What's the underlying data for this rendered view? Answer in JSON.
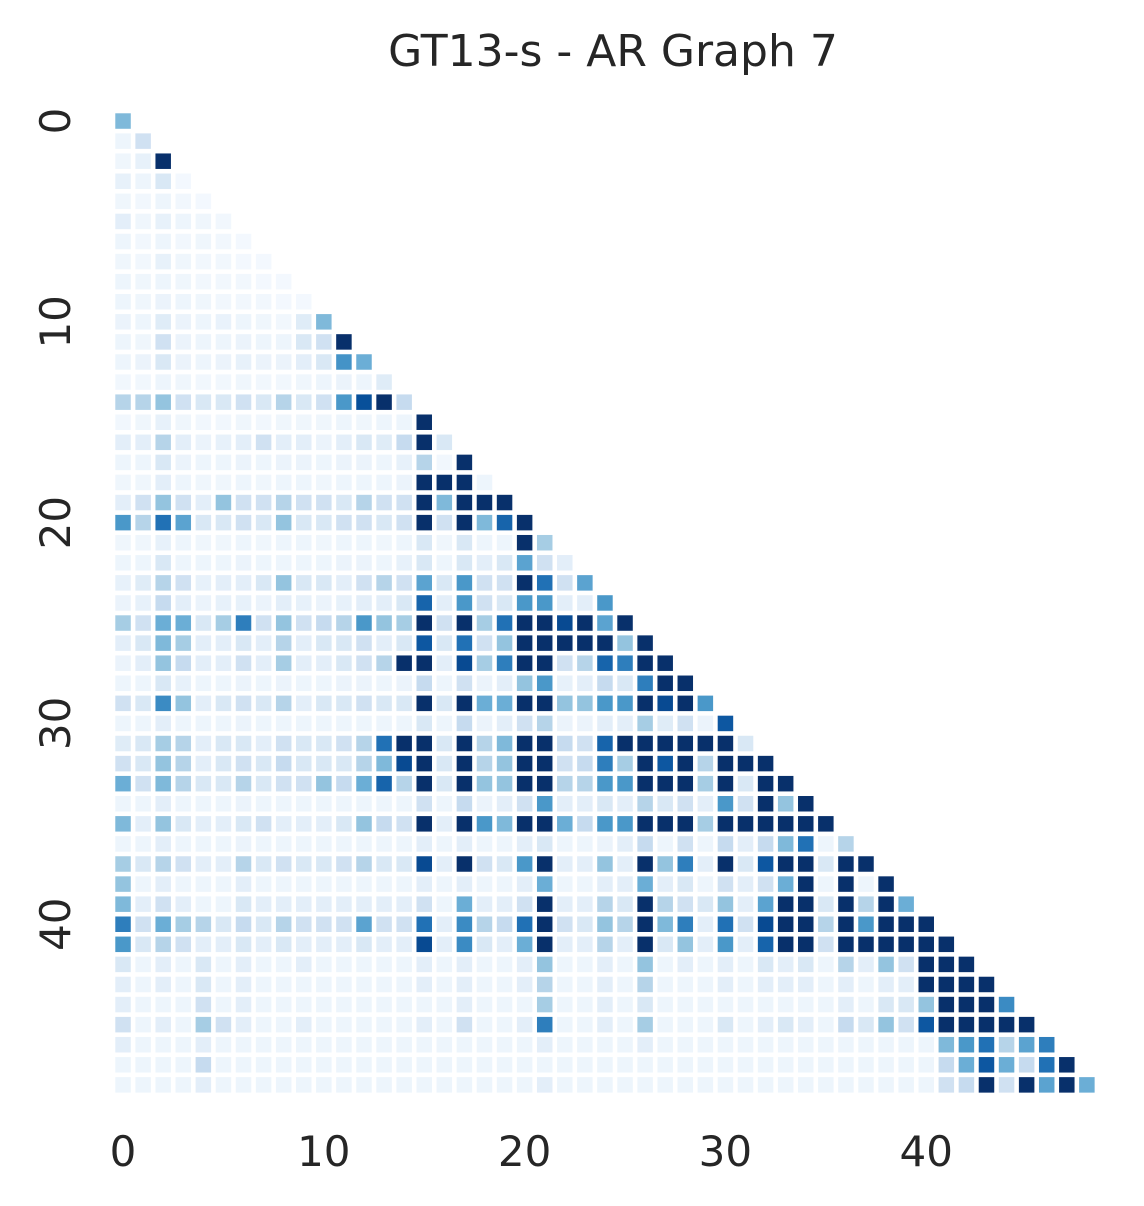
{
  "chart_data": {
    "type": "heatmap",
    "title": "GT13-s - AR Graph 7",
    "size": 49,
    "mask": "lower-triangle",
    "colormap": "Blues",
    "grid": false,
    "colors": {
      "low": "#f7fbff",
      "mid1": "#deebf7",
      "mid2": "#c6dbef",
      "mid3": "#9ecae1",
      "mid4": "#6baed6",
      "mid5": "#4292c6",
      "mid6": "#2171b5",
      "mid7": "#08519c",
      "high": "#08306b"
    },
    "x_ticks": [
      "0",
      "10",
      "20",
      "30",
      "40"
    ],
    "y_ticks": [
      "0",
      "10",
      "20",
      "30",
      "40"
    ],
    "value_range": [
      0,
      1
    ],
    "rows": [
      [
        0.45
      ],
      [
        0.05,
        0.2
      ],
      [
        0.04,
        0.08,
        1
      ],
      [
        0.08,
        0.05,
        0.15,
        0.02
      ],
      [
        0.04,
        0.03,
        0.05,
        0.03,
        0.02
      ],
      [
        0.1,
        0.04,
        0.08,
        0.05,
        0.04,
        0.03
      ],
      [
        0.05,
        0.03,
        0.05,
        0.03,
        0.04,
        0.03,
        0.02
      ],
      [
        0.04,
        0.03,
        0.08,
        0.04,
        0.03,
        0.03,
        0.02,
        0.02
      ],
      [
        0.05,
        0.04,
        0.05,
        0.04,
        0.03,
        0.03,
        0.03,
        0.02,
        0.02
      ],
      [
        0.05,
        0.04,
        0.06,
        0.05,
        0.04,
        0.03,
        0.03,
        0.03,
        0.02,
        0.02
      ],
      [
        0.06,
        0.05,
        0.12,
        0.06,
        0.05,
        0.07,
        0.05,
        0.04,
        0.03,
        0.12,
        0.45
      ],
      [
        0.05,
        0.04,
        0.2,
        0.06,
        0.05,
        0.05,
        0.06,
        0.05,
        0.05,
        0.15,
        0.2,
        1
      ],
      [
        0.05,
        0.06,
        0.15,
        0.06,
        0.05,
        0.06,
        0.08,
        0.06,
        0.06,
        0.1,
        0.15,
        0.62,
        0.5
      ],
      [
        0.03,
        0.03,
        0.05,
        0.04,
        0.03,
        0.03,
        0.04,
        0.03,
        0.03,
        0.04,
        0.05,
        0.06,
        0.05,
        0.12
      ],
      [
        0.3,
        0.3,
        0.4,
        0.2,
        0.15,
        0.15,
        0.2,
        0.15,
        0.3,
        0.15,
        0.2,
        0.6,
        0.88,
        1,
        0.25
      ],
      [
        0.03,
        0.04,
        0.08,
        0.04,
        0.03,
        0.03,
        0.04,
        0.03,
        0.04,
        0.04,
        0.04,
        0.05,
        0.04,
        0.05,
        0.05,
        1
      ],
      [
        0.1,
        0.1,
        0.3,
        0.1,
        0.06,
        0.08,
        0.1,
        0.2,
        0.1,
        0.1,
        0.06,
        0.1,
        0.15,
        0.12,
        0.25,
        1,
        0.15
      ],
      [
        0.05,
        0.05,
        0.15,
        0.06,
        0.05,
        0.05,
        0.06,
        0.05,
        0.06,
        0.06,
        0.05,
        0.06,
        0.06,
        0.05,
        0.08,
        0.3,
        0.03,
        1
      ],
      [
        0.04,
        0.04,
        0.1,
        0.05,
        0.04,
        0.04,
        0.05,
        0.04,
        0.05,
        0.05,
        0.04,
        0.05,
        0.05,
        0.05,
        0.06,
        1,
        1,
        1,
        0.05
      ],
      [
        0.1,
        0.2,
        0.4,
        0.2,
        0.1,
        0.4,
        0.2,
        0.2,
        0.3,
        0.2,
        0.2,
        0.15,
        0.3,
        0.2,
        0.2,
        1,
        0.45,
        1,
        1,
        1
      ],
      [
        0.6,
        0.3,
        0.75,
        0.55,
        0.15,
        0.15,
        0.2,
        0.15,
        0.4,
        0.15,
        0.15,
        0.2,
        0.2,
        0.15,
        0.2,
        1,
        0.2,
        1,
        0.45,
        0.8,
        1
      ],
      [
        0.04,
        0.04,
        0.08,
        0.05,
        0.04,
        0.04,
        0.05,
        0.04,
        0.05,
        0.05,
        0.04,
        0.05,
        0.05,
        0.04,
        0.05,
        0.15,
        0.04,
        0.15,
        0.05,
        0.05,
        1,
        0.35
      ],
      [
        0.05,
        0.05,
        0.15,
        0.05,
        0.05,
        0.05,
        0.06,
        0.05,
        0.05,
        0.05,
        0.05,
        0.06,
        0.06,
        0.05,
        0.08,
        0.15,
        0.05,
        0.15,
        0.1,
        0.15,
        0.55,
        0.2,
        0.1
      ],
      [
        0.08,
        0.12,
        0.3,
        0.2,
        0.08,
        0.1,
        0.1,
        0.15,
        0.4,
        0.15,
        0.15,
        0.1,
        0.2,
        0.3,
        0.2,
        0.55,
        0.15,
        0.6,
        0.2,
        0.2,
        1,
        0.75,
        0.2,
        0.55
      ],
      [
        0.06,
        0.08,
        0.25,
        0.1,
        0.06,
        0.08,
        0.08,
        0.06,
        0.1,
        0.08,
        0.06,
        0.08,
        0.1,
        0.1,
        0.15,
        0.8,
        0.1,
        0.6,
        0.2,
        0.15,
        0.6,
        0.6,
        0.1,
        0.1,
        0.6
      ],
      [
        0.35,
        0.2,
        0.5,
        0.5,
        0.15,
        0.35,
        0.7,
        0.2,
        0.4,
        0.2,
        0.25,
        0.3,
        0.6,
        0.4,
        0.35,
        1,
        0.2,
        1,
        0.35,
        0.75,
        1,
        1,
        0.9,
        1,
        0.55,
        1
      ],
      [
        0.1,
        0.15,
        0.45,
        0.35,
        0.1,
        0.1,
        0.15,
        0.1,
        0.3,
        0.1,
        0.15,
        0.15,
        0.2,
        0.1,
        0.15,
        0.85,
        0.15,
        0.75,
        0.2,
        0.4,
        1,
        1,
        1,
        1,
        1,
        0.4,
        1
      ],
      [
        0.06,
        0.1,
        0.4,
        0.25,
        0.1,
        0.1,
        0.2,
        0.1,
        0.35,
        0.1,
        0.1,
        0.15,
        0.2,
        0.3,
        1,
        1,
        0.1,
        0.9,
        0.35,
        0.7,
        1,
        1,
        0.2,
        0.3,
        0.8,
        0.7,
        1,
        1
      ],
      [
        0.05,
        0.05,
        0.15,
        0.08,
        0.05,
        0.05,
        0.06,
        0.05,
        0.06,
        0.05,
        0.05,
        0.06,
        0.06,
        0.05,
        0.06,
        0.25,
        0.05,
        0.2,
        0.06,
        0.1,
        0.4,
        0.6,
        0.08,
        0.1,
        0.25,
        0.15,
        0.7,
        1,
        1
      ],
      [
        0.2,
        0.15,
        0.65,
        0.4,
        0.1,
        0.15,
        0.2,
        0.15,
        0.3,
        0.1,
        0.15,
        0.15,
        0.2,
        0.15,
        0.15,
        1,
        0.15,
        1,
        0.5,
        0.5,
        1,
        1,
        0.4,
        0.4,
        0.6,
        0.6,
        1,
        0.9,
        1,
        0.6
      ],
      [
        0.05,
        0.05,
        0.1,
        0.05,
        0.05,
        0.05,
        0.06,
        0.05,
        0.05,
        0.05,
        0.05,
        0.05,
        0.05,
        0.05,
        0.05,
        0.15,
        0.05,
        0.25,
        0.06,
        0.1,
        0.2,
        0.3,
        0.06,
        0.06,
        0.1,
        0.1,
        0.35,
        0.12,
        0.2,
        0.06,
        0.85
      ],
      [
        0.12,
        0.15,
        0.35,
        0.3,
        0.1,
        0.15,
        0.15,
        0.1,
        0.2,
        0.15,
        0.15,
        0.2,
        0.3,
        0.75,
        1,
        1,
        0.15,
        1,
        0.3,
        0.45,
        1,
        1,
        0.25,
        0.2,
        0.8,
        1,
        1,
        1,
        1,
        1,
        1,
        0.15
      ],
      [
        0.2,
        0.15,
        0.4,
        0.3,
        0.1,
        0.15,
        0.2,
        0.15,
        0.25,
        0.15,
        0.15,
        0.15,
        0.3,
        0.45,
        0.9,
        1,
        0.15,
        1,
        0.3,
        0.4,
        1,
        1,
        0.2,
        0.25,
        0.7,
        0.35,
        1,
        0.85,
        1,
        0.3,
        1,
        1,
        1
      ],
      [
        0.5,
        0.2,
        0.45,
        0.3,
        0.15,
        0.15,
        0.3,
        0.15,
        0.2,
        0.2,
        0.4,
        0.25,
        0.5,
        0.8,
        0.3,
        1,
        0.15,
        1,
        0.4,
        0.4,
        1,
        1,
        0.3,
        0.3,
        0.6,
        0.6,
        1,
        1,
        1,
        0.35,
        1,
        0.15,
        1,
        1
      ],
      [
        0.05,
        0.05,
        0.1,
        0.05,
        0.05,
        0.05,
        0.06,
        0.05,
        0.05,
        0.05,
        0.05,
        0.05,
        0.05,
        0.05,
        0.05,
        0.2,
        0.05,
        0.25,
        0.06,
        0.1,
        0.2,
        0.6,
        0.1,
        0.1,
        0.15,
        0.1,
        0.3,
        0.15,
        0.2,
        0.1,
        0.6,
        0.2,
        1,
        0.4,
        1
      ],
      [
        0.45,
        0.1,
        0.4,
        0.15,
        0.1,
        0.1,
        0.15,
        0.2,
        0.1,
        0.1,
        0.1,
        0.15,
        0.4,
        0.25,
        0.2,
        1,
        0.1,
        1,
        0.6,
        0.45,
        1,
        1,
        0.5,
        0.25,
        0.6,
        0.6,
        1,
        1,
        1,
        0.35,
        1,
        1,
        1,
        1,
        1,
        1
      ],
      [
        0.05,
        0.05,
        0.1,
        0.05,
        0.05,
        0.05,
        0.06,
        0.05,
        0.05,
        0.05,
        0.05,
        0.05,
        0.05,
        0.05,
        0.05,
        0.1,
        0.05,
        0.1,
        0.05,
        0.05,
        0.1,
        0.15,
        0.05,
        0.05,
        0.06,
        0.1,
        0.25,
        0.05,
        0.2,
        0.05,
        0.25,
        0.1,
        0.25,
        0.45,
        0.75,
        0.05,
        0.3
      ],
      [
        0.35,
        0.15,
        0.3,
        0.2,
        0.1,
        0.1,
        0.3,
        0.15,
        0.2,
        0.15,
        0.15,
        0.2,
        0.3,
        0.15,
        0.15,
        0.9,
        0.1,
        1,
        0.2,
        0.15,
        0.6,
        1,
        0.1,
        0.1,
        0.4,
        0.1,
        1,
        0.4,
        0.7,
        0.1,
        1,
        0.15,
        0.85,
        1,
        1,
        0.15,
        1,
        1
      ],
      [
        0.4,
        0.05,
        0.1,
        0.05,
        0.05,
        0.05,
        0.1,
        0.05,
        0.05,
        0.05,
        0.05,
        0.05,
        0.05,
        0.05,
        0.05,
        0.1,
        0.05,
        0.1,
        0.05,
        0.05,
        0.1,
        0.5,
        0.05,
        0.05,
        0.1,
        0.1,
        0.5,
        0.1,
        0.15,
        0.05,
        0.2,
        0.1,
        0.2,
        0.5,
        1,
        0.05,
        1,
        0.05,
        1
      ],
      [
        0.45,
        0.1,
        0.2,
        0.1,
        0.05,
        0.05,
        0.15,
        0.1,
        0.1,
        0.1,
        0.1,
        0.1,
        0.1,
        0.1,
        0.1,
        0.2,
        0.05,
        0.5,
        0.1,
        0.1,
        0.2,
        1,
        0.1,
        0.1,
        0.3,
        0.15,
        1,
        0.3,
        0.2,
        0.15,
        0.4,
        0.1,
        0.55,
        1,
        1,
        0.15,
        1,
        0.3,
        1,
        0.5
      ],
      [
        0.7,
        0.2,
        0.5,
        0.35,
        0.3,
        0.15,
        0.25,
        0.15,
        0.3,
        0.2,
        0.2,
        0.2,
        0.55,
        0.2,
        0.2,
        0.75,
        0.1,
        0.65,
        0.3,
        0.25,
        0.75,
        1,
        0.2,
        0.15,
        0.4,
        0.3,
        1,
        0.45,
        0.7,
        0.1,
        0.75,
        0.2,
        0.9,
        1,
        1,
        0.3,
        1,
        0.6,
        1,
        1,
        1
      ],
      [
        0.6,
        0.15,
        0.3,
        0.2,
        0.1,
        0.1,
        0.15,
        0.1,
        0.15,
        0.1,
        0.1,
        0.1,
        0.15,
        0.1,
        0.1,
        0.9,
        0.1,
        0.65,
        0.15,
        0.1,
        0.5,
        1,
        0.1,
        0.1,
        0.3,
        0.1,
        1,
        0.15,
        0.4,
        0.1,
        0.6,
        0.1,
        0.8,
        1,
        1,
        0.2,
        1,
        1,
        1,
        1,
        1,
        1
      ],
      [
        0.15,
        0.05,
        0.1,
        0.05,
        0.15,
        0.05,
        0.1,
        0.05,
        0.05,
        0.1,
        0.05,
        0.05,
        0.05,
        0.05,
        0.05,
        0.1,
        0.05,
        0.1,
        0.05,
        0.05,
        0.1,
        0.4,
        0.05,
        0.05,
        0.1,
        0.05,
        0.4,
        0.05,
        0.1,
        0.05,
        0.1,
        0.05,
        0.15,
        0.1,
        0.15,
        0.05,
        0.3,
        0.1,
        0.4,
        0.2,
        1,
        1,
        1
      ],
      [
        0.1,
        0.05,
        0.1,
        0.05,
        0.15,
        0.05,
        0.1,
        0.05,
        0.05,
        0.05,
        0.05,
        0.05,
        0.05,
        0.05,
        0.05,
        0.1,
        0.05,
        0.1,
        0.05,
        0.05,
        0.1,
        0.3,
        0.05,
        0.05,
        0.1,
        0.05,
        0.3,
        0.05,
        0.05,
        0.05,
        0.1,
        0.05,
        0.1,
        0.1,
        0.1,
        0.05,
        0.1,
        0.05,
        0.1,
        0.1,
        1,
        1,
        1,
        1
      ],
      [
        0.1,
        0.05,
        0.05,
        0.05,
        0.2,
        0.05,
        0.1,
        0.05,
        0.05,
        0.05,
        0.05,
        0.05,
        0.05,
        0.05,
        0.05,
        0.05,
        0.05,
        0.1,
        0.05,
        0.05,
        0.05,
        0.35,
        0.05,
        0.05,
        0.1,
        0.05,
        0.15,
        0.05,
        0.05,
        0.05,
        0.05,
        0.05,
        0.05,
        0.05,
        0.05,
        0.05,
        0.1,
        0.05,
        0.15,
        0.15,
        0.4,
        1,
        1,
        1,
        0.65
      ],
      [
        0.2,
        0.05,
        0.1,
        0.05,
        0.35,
        0.2,
        0.1,
        0.05,
        0.05,
        0.1,
        0.05,
        0.05,
        0.05,
        0.05,
        0.05,
        0.1,
        0.05,
        0.2,
        0.05,
        0.05,
        0.1,
        0.7,
        0.05,
        0.05,
        0.1,
        0.05,
        0.35,
        0.05,
        0.05,
        0.05,
        0.15,
        0.05,
        0.1,
        0.15,
        0.1,
        0.05,
        0.25,
        0.15,
        0.4,
        0.2,
        0.85,
        1,
        1,
        1,
        1,
        1
      ],
      [
        0.1,
        0.05,
        0.05,
        0.05,
        0.1,
        0.05,
        0.05,
        0.05,
        0.05,
        0.05,
        0.05,
        0.05,
        0.05,
        0.05,
        0.05,
        0.05,
        0.05,
        0.05,
        0.05,
        0.05,
        0.05,
        0.1,
        0.05,
        0.05,
        0.05,
        0.05,
        0.1,
        0.05,
        0.05,
        0.05,
        0.05,
        0.05,
        0.05,
        0.05,
        0.05,
        0.05,
        0.05,
        0.05,
        0.05,
        0.05,
        0.05,
        0.45,
        0.6,
        0.75,
        0.3,
        0.55,
        0.7
      ],
      [
        0.05,
        0.05,
        0.05,
        0.05,
        0.25,
        0.05,
        0.05,
        0.05,
        0.05,
        0.05,
        0.05,
        0.05,
        0.05,
        0.05,
        0.05,
        0.05,
        0.05,
        0.05,
        0.05,
        0.05,
        0.05,
        0.05,
        0.05,
        0.05,
        0.05,
        0.05,
        0.05,
        0.05,
        0.05,
        0.05,
        0.05,
        0.05,
        0.05,
        0.05,
        0.05,
        0.05,
        0.05,
        0.05,
        0.05,
        0.05,
        0.05,
        0.25,
        0.5,
        0.85,
        0.5,
        0.25,
        0.75,
        1
      ],
      [
        0.05,
        0.05,
        0.05,
        0.05,
        0.1,
        0.05,
        0.05,
        0.05,
        0.05,
        0.05,
        0.05,
        0.05,
        0.05,
        0.05,
        0.05,
        0.05,
        0.05,
        0.05,
        0.05,
        0.05,
        0.05,
        0.1,
        0.05,
        0.05,
        0.05,
        0.05,
        0.05,
        0.05,
        0.05,
        0.05,
        0.05,
        0.05,
        0.05,
        0.05,
        0.05,
        0.05,
        0.05,
        0.05,
        0.05,
        0.05,
        0.05,
        0.2,
        0.25,
        1,
        0.2,
        1,
        0.55,
        1,
        0.5
      ]
    ]
  }
}
